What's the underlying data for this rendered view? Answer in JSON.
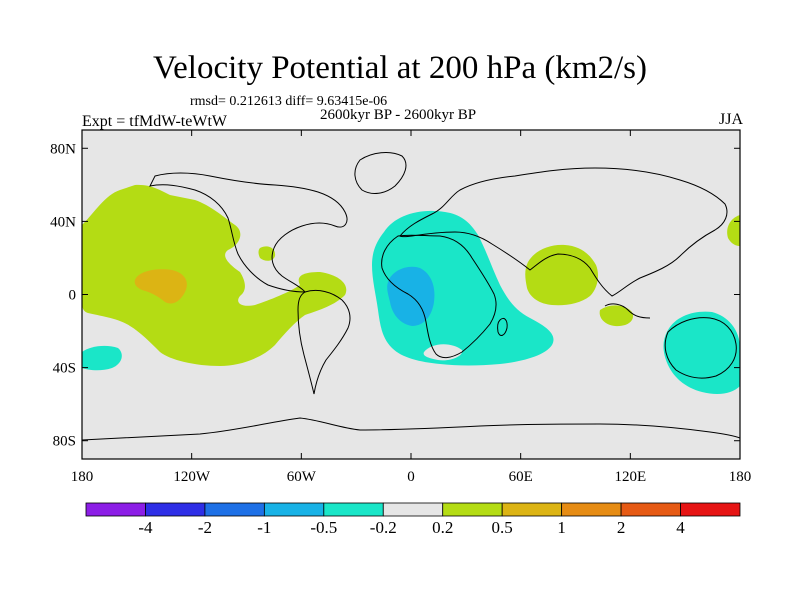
{
  "header": {
    "title": "Velocity Potential at 200 hPa (km2/s)",
    "stats": "rmsd= 0.212613 diff= 9.63415e-06",
    "period": "2600kyr BP - 2600kyr BP",
    "experiment": "Expt = tfMdW-teWtW",
    "season": "JJA"
  },
  "map": {
    "projection": "cylindrical-equidistant",
    "lon_range": [
      -180,
      180
    ],
    "lat_range": [
      -90,
      90
    ],
    "x_ticks": [
      {
        "lon": -180,
        "label": "180"
      },
      {
        "lon": -120,
        "label": "120W"
      },
      {
        "lon": -60,
        "label": "60W"
      },
      {
        "lon": 0,
        "label": "0"
      },
      {
        "lon": 60,
        "label": "60E"
      },
      {
        "lon": 120,
        "label": "120E"
      },
      {
        "lon": 180,
        "label": "180"
      }
    ],
    "y_ticks": [
      {
        "lat": 80,
        "label": "80N"
      },
      {
        "lat": 40,
        "label": "40N"
      },
      {
        "lat": 0,
        "label": "0"
      },
      {
        "lat": -40,
        "label": "40S"
      },
      {
        "lat": -80,
        "label": "80S"
      }
    ],
    "background_color": "#e6e6e6"
  },
  "colorbar": {
    "colors": [
      "#8c1ee6",
      "#2e2ee6",
      "#1e70e6",
      "#18b2e6",
      "#1ae6c8",
      "#e6e6e6",
      "#b4dc14",
      "#dcb414",
      "#e68c14",
      "#e65a14",
      "#e61414"
    ],
    "labels": [
      "-4",
      "-2",
      "-1",
      "-0.5",
      "-0.2",
      "0.2",
      "0.5",
      "1",
      "2",
      "4"
    ]
  },
  "chart_data": {
    "type": "contour-map",
    "title": "Velocity Potential at 200 hPa (km2/s)",
    "variable": "velocity potential",
    "units": "km2/s",
    "level_hPa": 200,
    "season": "JJA",
    "levels": [
      -4,
      -2,
      -1,
      -0.5,
      -0.2,
      0.2,
      0.5,
      1,
      2,
      4
    ],
    "regions": [
      {
        "name": "central-pacific-positive",
        "range": [
          0.2,
          0.5
        ],
        "color": "#b4dc14"
      },
      {
        "name": "central-pacific-peak",
        "range": [
          0.5,
          1
        ],
        "color": "#dcb414"
      },
      {
        "name": "north-atlantic-positive",
        "range": [
          0.2,
          0.5
        ],
        "color": "#b4dc14"
      },
      {
        "name": "africa-indian-ocean-negative",
        "range": [
          -0.5,
          -0.2
        ],
        "color": "#1ae6c8"
      },
      {
        "name": "equatorial-atlantic-minimum",
        "range": [
          -1,
          -0.5
        ],
        "color": "#18b2e6"
      },
      {
        "name": "south-asia-positive",
        "range": [
          0.2,
          0.5
        ],
        "color": "#b4dc14"
      },
      {
        "name": "maritime-continent-positive",
        "range": [
          0.2,
          0.5
        ],
        "color": "#b4dc14"
      },
      {
        "name": "australia-negative",
        "range": [
          -0.5,
          -0.2
        ],
        "color": "#1ae6c8"
      },
      {
        "name": "south-pacific-negative",
        "range": [
          -0.5,
          -0.2
        ],
        "color": "#1ae6c8"
      },
      {
        "name": "west-pacific-positive",
        "range": [
          0.2,
          0.5
        ],
        "color": "#b4dc14"
      }
    ]
  }
}
